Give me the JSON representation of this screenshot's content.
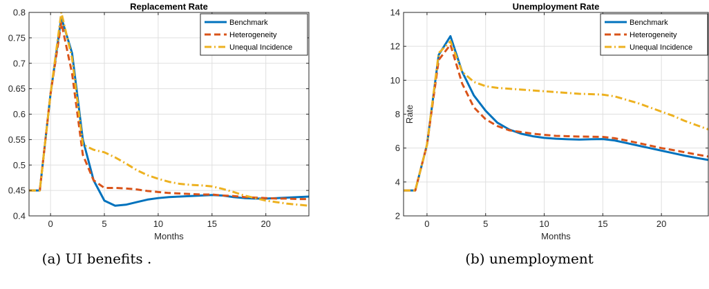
{
  "chart_data": [
    {
      "type": "line",
      "title": "Replacement Rate",
      "xlabel": "Months",
      "ylabel": "",
      "xlim": [
        -2,
        24
      ],
      "ylim": [
        0.4,
        0.8
      ],
      "xticks": [
        0,
        5,
        10,
        15,
        20
      ],
      "xtick_labels": [
        "0",
        "5",
        "10",
        "15",
        "20"
      ],
      "yticks": [
        0.4,
        0.45,
        0.5,
        0.55,
        0.6,
        0.65,
        0.7,
        0.75,
        0.8
      ],
      "ytick_labels": [
        "0.4",
        "0.45",
        "0.5",
        "0.55",
        "0.6",
        "0.65",
        "0.7",
        "0.75",
        "0.8"
      ],
      "grid": true,
      "legend_position": "top-right",
      "caption": "(a) UI benefits .",
      "series": [
        {
          "name": "Benchmark",
          "color": "#0072BD",
          "style": "solid",
          "x": [
            -2,
            -1,
            0,
            1,
            2,
            3,
            4,
            5,
            6,
            7,
            8,
            9,
            10,
            11,
            12,
            13,
            14,
            15,
            16,
            17,
            18,
            19,
            20,
            21,
            22,
            23,
            24
          ],
          "y": [
            0.45,
            0.45,
            0.64,
            0.79,
            0.72,
            0.55,
            0.47,
            0.43,
            0.42,
            0.422,
            0.427,
            0.432,
            0.435,
            0.437,
            0.438,
            0.439,
            0.44,
            0.441,
            0.44,
            0.437,
            0.435,
            0.434,
            0.434,
            0.435,
            0.436,
            0.437,
            0.438
          ]
        },
        {
          "name": "Heterogeneity",
          "color": "#D95319",
          "style": "dashed",
          "x": [
            -2,
            -1,
            0,
            1,
            2,
            3,
            4,
            5,
            6,
            7,
            8,
            9,
            10,
            11,
            12,
            13,
            14,
            15,
            16,
            17,
            18,
            19,
            20,
            21,
            22,
            23,
            24
          ],
          "y": [
            0.45,
            0.45,
            0.64,
            0.78,
            0.68,
            0.52,
            0.47,
            0.455,
            0.455,
            0.454,
            0.452,
            0.449,
            0.447,
            0.445,
            0.444,
            0.443,
            0.442,
            0.442,
            0.44,
            0.439,
            0.437,
            0.436,
            0.435,
            0.434,
            0.434,
            0.433,
            0.433
          ]
        },
        {
          "name": "Unequal Incidence",
          "color": "#EDB120",
          "style": "dashdot",
          "x": [
            -2,
            -1,
            0,
            1,
            2,
            3,
            4,
            5,
            6,
            7,
            8,
            9,
            10,
            11,
            12,
            13,
            14,
            15,
            16,
            17,
            18,
            19,
            20,
            21,
            22,
            23,
            24
          ],
          "y": [
            0.45,
            0.45,
            0.64,
            0.8,
            0.71,
            0.54,
            0.53,
            0.525,
            0.515,
            0.503,
            0.49,
            0.48,
            0.473,
            0.467,
            0.463,
            0.461,
            0.46,
            0.458,
            0.453,
            0.447,
            0.44,
            0.435,
            0.43,
            0.427,
            0.424,
            0.422,
            0.42
          ]
        }
      ]
    },
    {
      "type": "line",
      "title": "Unemployment Rate",
      "xlabel": "Months",
      "ylabel": "Rate",
      "xlim": [
        -2,
        24
      ],
      "ylim": [
        2,
        14
      ],
      "xticks": [
        0,
        5,
        10,
        15,
        20
      ],
      "xtick_labels": [
        "0",
        "5",
        "10",
        "15",
        "20"
      ],
      "yticks": [
        2,
        4,
        6,
        8,
        10,
        12,
        14
      ],
      "ytick_labels": [
        "2",
        "4",
        "6",
        "8",
        "10",
        "12",
        "14"
      ],
      "grid": true,
      "legend_position": "top-right",
      "caption": "(b) unemployment",
      "series": [
        {
          "name": "Benchmark",
          "color": "#0072BD",
          "style": "solid",
          "x": [
            -2,
            -1,
            0,
            1,
            2,
            3,
            4,
            5,
            6,
            7,
            8,
            9,
            10,
            11,
            12,
            13,
            14,
            15,
            16,
            17,
            18,
            19,
            20,
            21,
            22,
            23,
            24
          ],
          "y": [
            3.5,
            3.5,
            6.2,
            11.5,
            12.6,
            10.5,
            9.1,
            8.2,
            7.5,
            7.1,
            6.85,
            6.7,
            6.6,
            6.55,
            6.52,
            6.5,
            6.52,
            6.53,
            6.45,
            6.3,
            6.15,
            6.0,
            5.85,
            5.7,
            5.55,
            5.42,
            5.3
          ]
        },
        {
          "name": "Heterogeneity",
          "color": "#D95319",
          "style": "dashed",
          "x": [
            -2,
            -1,
            0,
            1,
            2,
            3,
            4,
            5,
            6,
            7,
            8,
            9,
            10,
            11,
            12,
            13,
            14,
            15,
            16,
            17,
            18,
            19,
            20,
            21,
            22,
            23,
            24
          ],
          "y": [
            3.5,
            3.5,
            6.2,
            11.2,
            12.1,
            9.8,
            8.4,
            7.7,
            7.3,
            7.05,
            6.95,
            6.85,
            6.78,
            6.72,
            6.7,
            6.68,
            6.67,
            6.66,
            6.58,
            6.45,
            6.3,
            6.15,
            6.0,
            5.88,
            5.75,
            5.62,
            5.5
          ]
        },
        {
          "name": "Unequal Incidence",
          "color": "#EDB120",
          "style": "dashdot",
          "x": [
            -2,
            -1,
            0,
            1,
            2,
            3,
            4,
            5,
            6,
            7,
            8,
            9,
            10,
            11,
            12,
            13,
            14,
            15,
            16,
            17,
            18,
            19,
            20,
            21,
            22,
            23,
            24
          ],
          "y": [
            3.5,
            3.5,
            6.2,
            11.6,
            12.3,
            10.5,
            9.9,
            9.65,
            9.55,
            9.5,
            9.45,
            9.4,
            9.35,
            9.3,
            9.25,
            9.2,
            9.18,
            9.15,
            9.05,
            8.85,
            8.65,
            8.4,
            8.15,
            7.9,
            7.6,
            7.35,
            7.1
          ]
        }
      ]
    }
  ]
}
